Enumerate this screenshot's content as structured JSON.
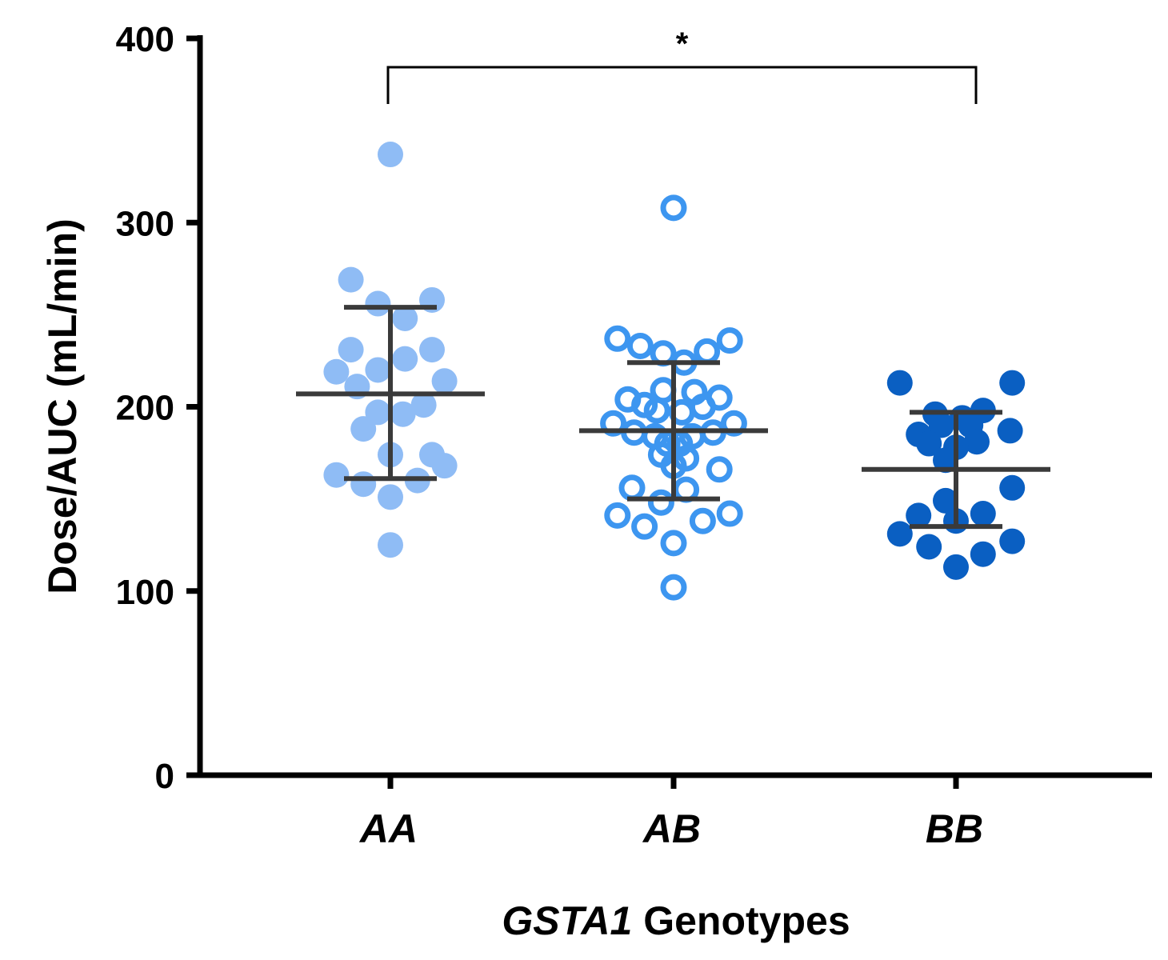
{
  "chart_data": {
    "type": "scatter",
    "ylabel": "Dose/AUC (mL/min)",
    "xlabel_italic": "GSTA1",
    "xlabel_rest": " Genotypes",
    "ylim": [
      0,
      400
    ],
    "yticks": [
      0,
      100,
      200,
      300,
      400
    ],
    "categories": [
      "AA",
      "AB",
      "BB"
    ],
    "colors": {
      "AA": "#8fbcf5",
      "AB": "#3d96f0",
      "BB": "#0a5fc2",
      "summary": "#3a3a3a",
      "axis": "#000000"
    },
    "series": [
      {
        "name": "AA",
        "marker": "filled",
        "mean": 207,
        "sd_upper": 254,
        "sd_lower": 161,
        "points": [
          {
            "x": 0.0,
            "y": 337
          },
          {
            "x": -0.19,
            "y": 269
          },
          {
            "x": -0.06,
            "y": 256
          },
          {
            "x": 0.2,
            "y": 258
          },
          {
            "x": 0.07,
            "y": 248
          },
          {
            "x": -0.19,
            "y": 231
          },
          {
            "x": 0.2,
            "y": 231
          },
          {
            "x": 0.07,
            "y": 226
          },
          {
            "x": -0.26,
            "y": 219
          },
          {
            "x": -0.06,
            "y": 220
          },
          {
            "x": 0.26,
            "y": 214
          },
          {
            "x": -0.16,
            "y": 211
          },
          {
            "x": 0.16,
            "y": 201
          },
          {
            "x": -0.06,
            "y": 197
          },
          {
            "x": 0.06,
            "y": 196
          },
          {
            "x": -0.13,
            "y": 188
          },
          {
            "x": 0.0,
            "y": 174
          },
          {
            "x": 0.2,
            "y": 174
          },
          {
            "x": 0.26,
            "y": 168
          },
          {
            "x": -0.26,
            "y": 163
          },
          {
            "x": 0.13,
            "y": 160
          },
          {
            "x": -0.13,
            "y": 158
          },
          {
            "x": 0.0,
            "y": 151
          },
          {
            "x": 0.0,
            "y": 125
          }
        ]
      },
      {
        "name": "AB",
        "marker": "open",
        "mean": 187,
        "sd_upper": 224,
        "sd_lower": 150,
        "points": [
          {
            "x": 0.0,
            "y": 308
          },
          {
            "x": -0.27,
            "y": 237
          },
          {
            "x": 0.27,
            "y": 236
          },
          {
            "x": -0.16,
            "y": 233
          },
          {
            "x": 0.16,
            "y": 230
          },
          {
            "x": -0.05,
            "y": 229
          },
          {
            "x": 0.05,
            "y": 224
          },
          {
            "x": -0.05,
            "y": 209
          },
          {
            "x": 0.1,
            "y": 208
          },
          {
            "x": -0.22,
            "y": 204
          },
          {
            "x": 0.22,
            "y": 205
          },
          {
            "x": -0.14,
            "y": 201
          },
          {
            "x": 0.14,
            "y": 200
          },
          {
            "x": -0.08,
            "y": 198
          },
          {
            "x": 0.04,
            "y": 197
          },
          {
            "x": -0.29,
            "y": 191
          },
          {
            "x": 0.29,
            "y": 191
          },
          {
            "x": -0.19,
            "y": 186
          },
          {
            "x": 0.19,
            "y": 186
          },
          {
            "x": -0.09,
            "y": 184
          },
          {
            "x": 0.09,
            "y": 184
          },
          {
            "x": -0.03,
            "y": 180
          },
          {
            "x": 0.03,
            "y": 180
          },
          {
            "x": -0.06,
            "y": 174
          },
          {
            "x": 0.06,
            "y": 172
          },
          {
            "x": 0.0,
            "y": 168
          },
          {
            "x": 0.22,
            "y": 166
          },
          {
            "x": -0.2,
            "y": 156
          },
          {
            "x": 0.06,
            "y": 155
          },
          {
            "x": -0.06,
            "y": 148
          },
          {
            "x": -0.27,
            "y": 141
          },
          {
            "x": 0.27,
            "y": 142
          },
          {
            "x": -0.14,
            "y": 135
          },
          {
            "x": 0.14,
            "y": 138
          },
          {
            "x": 0.0,
            "y": 126
          },
          {
            "x": 0.0,
            "y": 102
          }
        ]
      },
      {
        "name": "BB",
        "marker": "filled",
        "mean": 166,
        "sd_upper": 197,
        "sd_lower": 135,
        "points": [
          {
            "x": -0.27,
            "y": 213
          },
          {
            "x": 0.27,
            "y": 213
          },
          {
            "x": -0.1,
            "y": 196
          },
          {
            "x": 0.13,
            "y": 198
          },
          {
            "x": 0.03,
            "y": 194
          },
          {
            "x": -0.07,
            "y": 190
          },
          {
            "x": 0.07,
            "y": 190
          },
          {
            "x": -0.18,
            "y": 185
          },
          {
            "x": 0.26,
            "y": 187
          },
          {
            "x": -0.13,
            "y": 180
          },
          {
            "x": 0.1,
            "y": 181
          },
          {
            "x": 0.0,
            "y": 178
          },
          {
            "x": -0.05,
            "y": 171
          },
          {
            "x": 0.27,
            "y": 156
          },
          {
            "x": -0.05,
            "y": 149
          },
          {
            "x": -0.18,
            "y": 141
          },
          {
            "x": 0.13,
            "y": 142
          },
          {
            "x": 0.0,
            "y": 138
          },
          {
            "x": -0.27,
            "y": 131
          },
          {
            "x": 0.27,
            "y": 127
          },
          {
            "x": -0.13,
            "y": 124
          },
          {
            "x": 0.13,
            "y": 120
          },
          {
            "x": 0.0,
            "y": 113
          }
        ]
      }
    ],
    "significance": {
      "from": "AA",
      "to": "BB",
      "label": "*"
    }
  }
}
